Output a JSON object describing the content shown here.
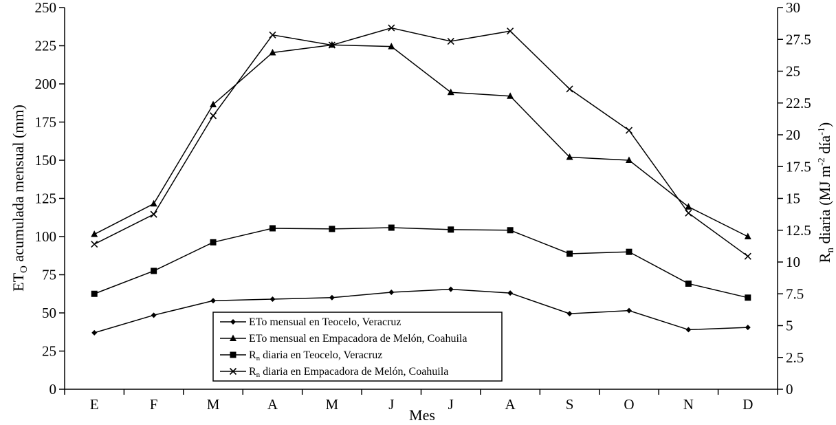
{
  "chart_data": {
    "type": "line",
    "categories": [
      "E",
      "F",
      "M",
      "A",
      "M",
      "J",
      "J",
      "A",
      "S",
      "O",
      "N",
      "D"
    ],
    "xlabel": "Mes",
    "ylabel_left": {
      "base": "ET",
      "sub": "O",
      "rest": " acumulada mensual (mm)"
    },
    "ylabel_right": {
      "p1": "R",
      "sub1": "n",
      "p2": " diaria (MJ m",
      "sup1": "-2",
      "p3": " día",
      "sup2": "-1",
      "p4": ")"
    },
    "ylim_left": [
      0,
      250
    ],
    "ylim_right": [
      0,
      30
    ],
    "yticks_left": [
      "0",
      "25",
      "50",
      "75",
      "100",
      "125",
      "150",
      "175",
      "200",
      "225",
      "250"
    ],
    "yticks_right": [
      "0",
      "2.5",
      "5",
      "7.5",
      "10",
      "12.5",
      "15",
      "17.5",
      "20",
      "22.5",
      "25",
      "27.5",
      "30"
    ],
    "grid": false,
    "legend_position": "bottom-center",
    "series": [
      {
        "name": "ETo mensual en Teocelo, Veracruz",
        "legend": {
          "pre": "ETo mensual en Teocelo, Veracruz",
          "sub": "",
          "post": ""
        },
        "axis": "left",
        "marker": "diamond",
        "values": [
          37,
          48.5,
          58,
          59,
          60,
          63.5,
          65.5,
          63,
          49.5,
          51.5,
          39,
          40.5
        ]
      },
      {
        "name": "ETo mensual en Empacadora de Melón, Coahuila",
        "legend": {
          "pre": "ETo mensual en Empacadora de Melón, Coahuila",
          "sub": "",
          "post": ""
        },
        "axis": "left",
        "marker": "triangle",
        "values": [
          101.5,
          121.5,
          186.5,
          220.5,
          225.5,
          224.5,
          194.5,
          192,
          152,
          150,
          119.5,
          100
        ]
      },
      {
        "name": "Rn diaria en Teocelo, Veracruz",
        "legend": {
          "pre": "R",
          "sub": "n",
          "post": " diaria en Teocelo, Veracruz"
        },
        "axis": "right",
        "marker": "square",
        "values": [
          7.5,
          9.3,
          11.55,
          12.65,
          12.6,
          12.7,
          12.55,
          12.5,
          10.65,
          10.8,
          8.3,
          7.2
        ]
      },
      {
        "name": "Rn diaria en Empacadora de Melón, Coahuila",
        "legend": {
          "pre": "R",
          "sub": "n",
          "post": " diaria en Empacadora de Melón, Coahuila"
        },
        "axis": "right",
        "marker": "cross",
        "values": [
          11.4,
          13.75,
          21.5,
          27.85,
          27.05,
          28.4,
          27.35,
          28.15,
          23.6,
          20.35,
          13.85,
          10.45
        ]
      }
    ]
  }
}
